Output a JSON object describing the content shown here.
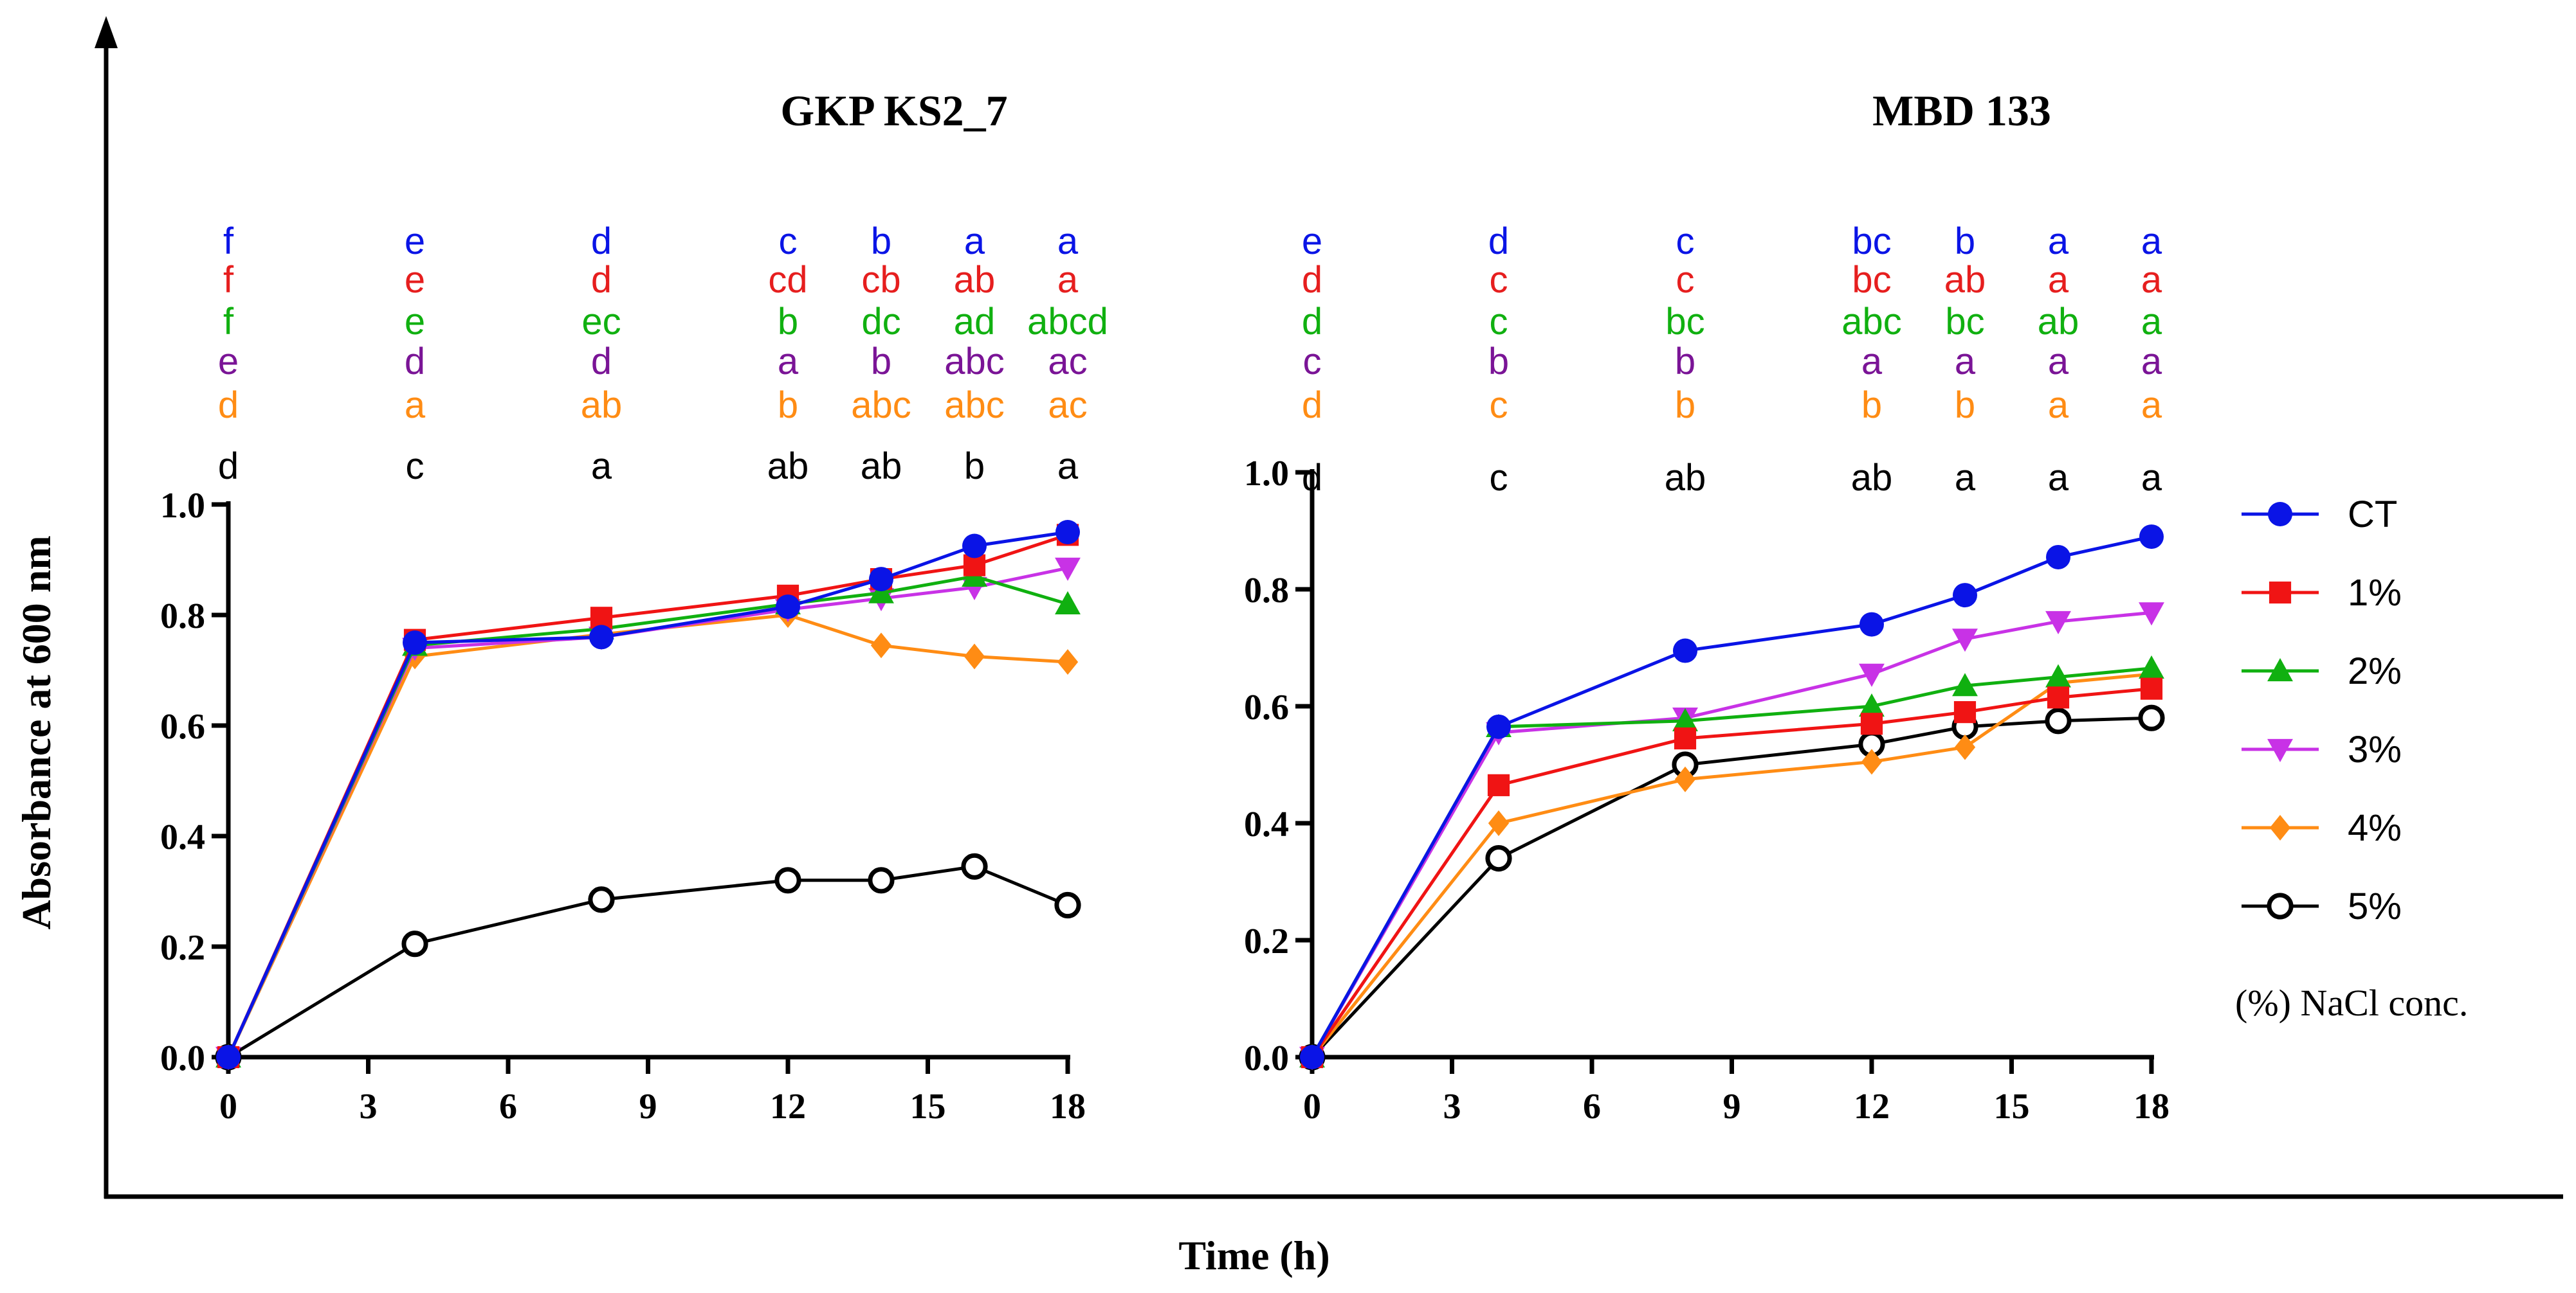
{
  "figure": {
    "ylabel": "Absorbance  at 600 nm",
    "xlabel": "Time  (h)",
    "legend_title": "(%) NaCl conc.",
    "colors": {
      "CT": "#0a14e6",
      "1%": "#f01414",
      "2%": "#10b010",
      "3%": "#c832e6",
      "4%": "#ff8c14",
      "5%": "#000000",
      "letters_1%": "#e61e1e",
      "letters_3%": "#7a1496"
    }
  },
  "legend": [
    {
      "label": "CT",
      "marker": "circle"
    },
    {
      "label": "1%",
      "marker": "square"
    },
    {
      "label": "2%",
      "marker": "triangle-up"
    },
    {
      "label": "3%",
      "marker": "triangle-down"
    },
    {
      "label": "4%",
      "marker": "diamond"
    },
    {
      "label": "5%",
      "marker": "open-circle"
    }
  ],
  "chart_data": [
    {
      "type": "line",
      "title": "GKP KS2_7",
      "xlabel": "Time  (h)",
      "ylabel": "Absorbance  at 600 nm",
      "xlim": [
        0,
        18
      ],
      "ylim": [
        0,
        1.0
      ],
      "xticks": [
        "0",
        "3",
        "6",
        "9",
        "12",
        "15",
        "18"
      ],
      "yticks": [
        "0.0",
        "0.2",
        "0.4",
        "0.6",
        "0.8",
        "1.0"
      ],
      "x": [
        0,
        4,
        8,
        12,
        14,
        16,
        18
      ],
      "series": [
        {
          "name": "CT",
          "values": [
            0,
            0.75,
            0.76,
            0.815,
            0.865,
            0.925,
            0.95
          ],
          "letters": [
            "f",
            "e",
            "d",
            "c",
            "b",
            "a",
            "a"
          ]
        },
        {
          "name": "1%",
          "values": [
            0,
            0.755,
            0.795,
            0.835,
            0.865,
            0.89,
            0.945
          ],
          "letters": [
            "f",
            "e",
            "d",
            "cd",
            "cb",
            "ab",
            "a"
          ]
        },
        {
          "name": "2%",
          "values": [
            0,
            0.745,
            0.775,
            0.82,
            0.84,
            0.87,
            0.82
          ],
          "letters": [
            "f",
            "e",
            "ec",
            "b",
            "dc",
            "ad",
            "abcd"
          ]
        },
        {
          "name": "3%",
          "values": [
            0,
            0.74,
            0.76,
            0.81,
            0.83,
            0.85,
            0.885
          ],
          "letters": [
            "e",
            "d",
            "d",
            "a",
            "b",
            "abc",
            "ac"
          ]
        },
        {
          "name": "4%",
          "values": [
            0,
            0.725,
            0.765,
            0.8,
            0.745,
            0.725,
            0.715
          ],
          "letters": [
            "d",
            "a",
            "ab",
            "b",
            "abc",
            "abc",
            "ac"
          ]
        },
        {
          "name": "5%",
          "values": [
            0,
            0.205,
            0.285,
            0.32,
            0.32,
            0.345,
            0.275
          ],
          "letters": [
            "d",
            "c",
            "a",
            "ab",
            "ab",
            "b",
            "a"
          ]
        }
      ]
    },
    {
      "type": "line",
      "title": "MBD 133",
      "xlabel": "Time  (h)",
      "ylabel": "Absorbance  at 600 nm",
      "xlim": [
        0,
        18
      ],
      "ylim": [
        0,
        1.0
      ],
      "xticks": [
        "0",
        "3",
        "6",
        "9",
        "12",
        "15",
        "18"
      ],
      "yticks": [
        "0.0",
        "0.2",
        "0.4",
        "0.6",
        "0.8",
        "1.0"
      ],
      "x": [
        0,
        4,
        8,
        12,
        14,
        16,
        18
      ],
      "series": [
        {
          "name": "CT",
          "values": [
            0,
            0.565,
            0.695,
            0.74,
            0.79,
            0.855,
            0.89
          ],
          "letters": [
            "e",
            "d",
            "c",
            "bc",
            "b",
            "a",
            "a"
          ]
        },
        {
          "name": "1%",
          "values": [
            0,
            0.465,
            0.545,
            0.57,
            0.59,
            0.615,
            0.63
          ],
          "letters": [
            "d",
            "c",
            "c",
            "bc",
            "ab",
            "a",
            "a"
          ]
        },
        {
          "name": "2%",
          "values": [
            0,
            0.565,
            0.575,
            0.6,
            0.635,
            0.65,
            0.665
          ],
          "letters": [
            "d",
            "c",
            "bc",
            "abc",
            "bc",
            "ab",
            "a"
          ]
        },
        {
          "name": "3%",
          "values": [
            0,
            0.555,
            0.58,
            0.655,
            0.715,
            0.745,
            0.76
          ],
          "letters": [
            "c",
            "b",
            "b",
            "a",
            "a",
            "a",
            "a"
          ]
        },
        {
          "name": "4%",
          "values": [
            0,
            0.4,
            0.475,
            0.505,
            0.53,
            0.64,
            0.655
          ],
          "letters": [
            "d",
            "c",
            "b",
            "b",
            "b",
            "a",
            "a"
          ]
        },
        {
          "name": "5%",
          "values": [
            0,
            0.34,
            0.5,
            0.535,
            0.565,
            0.575,
            0.58
          ],
          "letters": [
            "d",
            "c",
            "ab",
            "ab",
            "a",
            "a",
            "a"
          ]
        }
      ]
    }
  ]
}
